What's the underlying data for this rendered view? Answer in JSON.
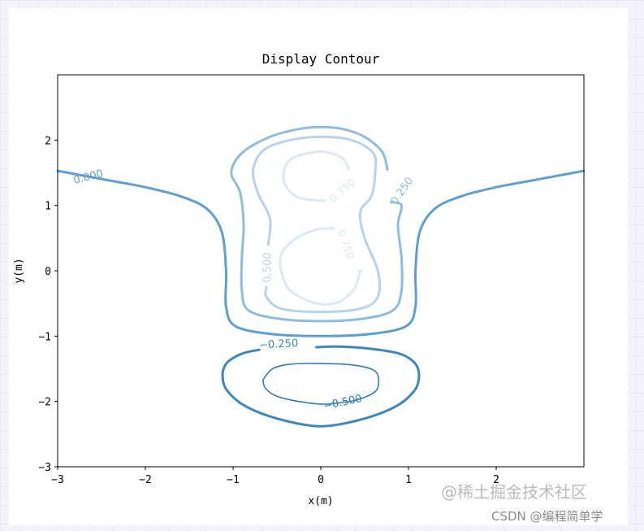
{
  "chart_data": {
    "type": "contour",
    "title": "Display Contour",
    "xlabel": "x(m)",
    "ylabel": "y(m)",
    "xlim": [
      -3,
      3
    ],
    "ylim": [
      -3,
      3
    ],
    "xticks": [
      "−3",
      "−2",
      "−1",
      "0",
      "1",
      "2"
    ],
    "yticks": [
      "−3",
      "−2",
      "−1",
      "0",
      "1",
      "2"
    ],
    "xtick_values": [
      -3,
      -2,
      -1,
      0,
      1,
      2
    ],
    "ytick_values": [
      -3,
      -2,
      -1,
      0,
      1,
      2
    ],
    "grid": false,
    "levels": [
      {
        "level": -0.5,
        "label": "−0.500",
        "color": "#2f7bb6",
        "paths": [
          [
            [
              -0.66,
              -1.67
            ],
            [
              -0.55,
              -1.5
            ],
            [
              -0.35,
              -1.43
            ],
            [
              0,
              -1.42
            ],
            [
              0.35,
              -1.44
            ],
            [
              0.6,
              -1.52
            ],
            [
              0.66,
              -1.67
            ],
            [
              0.62,
              -1.85
            ],
            [
              0.4,
              -1.98
            ],
            [
              0.15,
              -2.03
            ],
            [
              0,
              -2.04
            ],
            [
              -0.25,
              -2.0
            ],
            [
              -0.5,
              -1.92
            ],
            [
              -0.63,
              -1.8
            ],
            [
              -0.66,
              -1.67
            ]
          ]
        ],
        "label_pos": [
          0.25,
          -2.02
        ],
        "label_angle": -12
      },
      {
        "level": -0.25,
        "label": "−0.250",
        "color": "#3a87bf",
        "paths": [
          [
            [
              -0.7,
              -1.21
            ],
            [
              -0.9,
              -1.27
            ],
            [
              -1.07,
              -1.41
            ],
            [
              -1.12,
              -1.6
            ],
            [
              -1.07,
              -1.83
            ],
            [
              -0.85,
              -2.08
            ],
            [
              -0.45,
              -2.28
            ],
            [
              0,
              -2.38
            ],
            [
              0.45,
              -2.28
            ],
            [
              0.85,
              -2.08
            ],
            [
              1.07,
              -1.83
            ],
            [
              1.12,
              -1.6
            ],
            [
              1.07,
              -1.41
            ],
            [
              0.9,
              -1.27
            ],
            [
              0.55,
              -1.19
            ],
            [
              0.2,
              -1.16
            ],
            [
              -0.05,
              -1.17
            ]
          ]
        ],
        "label_pos": [
          -0.48,
          -1.13
        ],
        "label_angle": -3
      },
      {
        "level": 0.0,
        "label": "0.000",
        "color": "#5c9fd0",
        "paths": [
          [
            [
              -3,
              1.53
            ],
            [
              -2.8,
              1.48
            ],
            [
              -2.4,
              1.38
            ],
            [
              -2.0,
              1.28
            ],
            [
              -1.6,
              1.14
            ],
            [
              -1.3,
              0.95
            ],
            [
              -1.13,
              0.6
            ],
            [
              -1.08,
              0.0
            ],
            [
              -1.08,
              -0.55
            ],
            [
              -0.97,
              -0.85
            ],
            [
              -0.55,
              -0.97
            ],
            [
              0,
              -1.0
            ],
            [
              0.55,
              -0.97
            ],
            [
              0.97,
              -0.85
            ],
            [
              1.08,
              -0.55
            ],
            [
              1.08,
              0.0
            ],
            [
              1.13,
              0.6
            ],
            [
              1.3,
              0.95
            ],
            [
              1.6,
              1.14
            ],
            [
              2.0,
              1.28
            ],
            [
              2.4,
              1.38
            ],
            [
              2.8,
              1.48
            ],
            [
              3,
              1.53
            ]
          ]
        ],
        "label_pos": [
          -2.65,
          1.43
        ],
        "label_angle": -14
      },
      {
        "level": 0.25,
        "label": "0.250",
        "color": "#8ebcdf",
        "paths": [
          [
            [
              0.76,
              1.55
            ],
            [
              0.7,
              1.82
            ],
            [
              0.5,
              2.05
            ],
            [
              0.25,
              2.17
            ],
            [
              0,
              2.2
            ],
            [
              -0.25,
              2.17
            ],
            [
              -0.58,
              2.05
            ],
            [
              -0.9,
              1.8
            ],
            [
              -1.02,
              1.5
            ],
            [
              -0.92,
              1.2
            ],
            [
              -0.88,
              0.7
            ],
            [
              -0.9,
              0.2
            ],
            [
              -0.9,
              -0.3
            ],
            [
              -0.83,
              -0.6
            ],
            [
              -0.5,
              -0.73
            ],
            [
              0,
              -0.77
            ],
            [
              0.5,
              -0.73
            ],
            [
              0.83,
              -0.6
            ],
            [
              0.92,
              -0.3
            ],
            [
              0.92,
              0.2
            ],
            [
              0.88,
              0.7
            ],
            [
              0.92,
              1.0
            ],
            [
              0.8,
              1.05
            ]
          ]
        ],
        "label_pos": [
          0.93,
          1.22
        ],
        "label_angle": -55
      },
      {
        "level": 0.5,
        "label": "0.500",
        "color": "#b5d3ea",
        "paths": [
          [
            [
              -0.6,
              0.4
            ],
            [
              -0.58,
              0.8
            ],
            [
              -0.72,
              1.2
            ],
            [
              -0.77,
              1.55
            ],
            [
              -0.65,
              1.85
            ],
            [
              -0.35,
              2.0
            ],
            [
              0,
              2.05
            ],
            [
              0.35,
              2.0
            ],
            [
              0.6,
              1.8
            ],
            [
              0.62,
              1.5
            ],
            [
              0.58,
              1.15
            ],
            [
              0.45,
              0.9
            ],
            [
              0.5,
              0.5
            ],
            [
              0.65,
              0.0
            ],
            [
              0.65,
              -0.4
            ],
            [
              0.45,
              -0.58
            ],
            [
              0,
              -0.63
            ],
            [
              -0.45,
              -0.58
            ],
            [
              -0.62,
              -0.4
            ],
            [
              -0.62,
              -0.25
            ]
          ]
        ],
        "label_pos": [
          -0.6,
          0.05
        ],
        "label_angle": -90
      },
      {
        "level": 0.75,
        "label": "0.750",
        "color": "#dbe9f6",
        "paths": [
          [
            [
              0.05,
              1.07
            ],
            [
              -0.25,
              1.12
            ],
            [
              -0.4,
              1.3
            ],
            [
              -0.42,
              1.52
            ],
            [
              -0.35,
              1.7
            ],
            [
              -0.15,
              1.8
            ],
            [
              0.05,
              1.82
            ],
            [
              0.25,
              1.72
            ],
            [
              0.32,
              1.55
            ]
          ],
          [
            [
              0.15,
              0.65
            ],
            [
              -0.05,
              0.63
            ],
            [
              -0.3,
              0.48
            ],
            [
              -0.45,
              0.25
            ],
            [
              -0.45,
              0.0
            ],
            [
              -0.35,
              -0.3
            ],
            [
              -0.05,
              -0.5
            ],
            [
              0.2,
              -0.48
            ],
            [
              0.38,
              -0.28
            ],
            [
              0.45,
              0.0
            ]
          ]
        ],
        "label_pos": [
          0.25,
          1.22
        ],
        "label_angle": -40
      }
    ],
    "extra_labels": [
      {
        "label": "0.750",
        "color": "#dbe9f6",
        "pos": [
          0.28,
          0.4
        ],
        "angle": 70
      }
    ]
  },
  "watermark": {
    "primary": "@稀土掘金技术社区",
    "secondary": "CSDN @编程简单学"
  }
}
